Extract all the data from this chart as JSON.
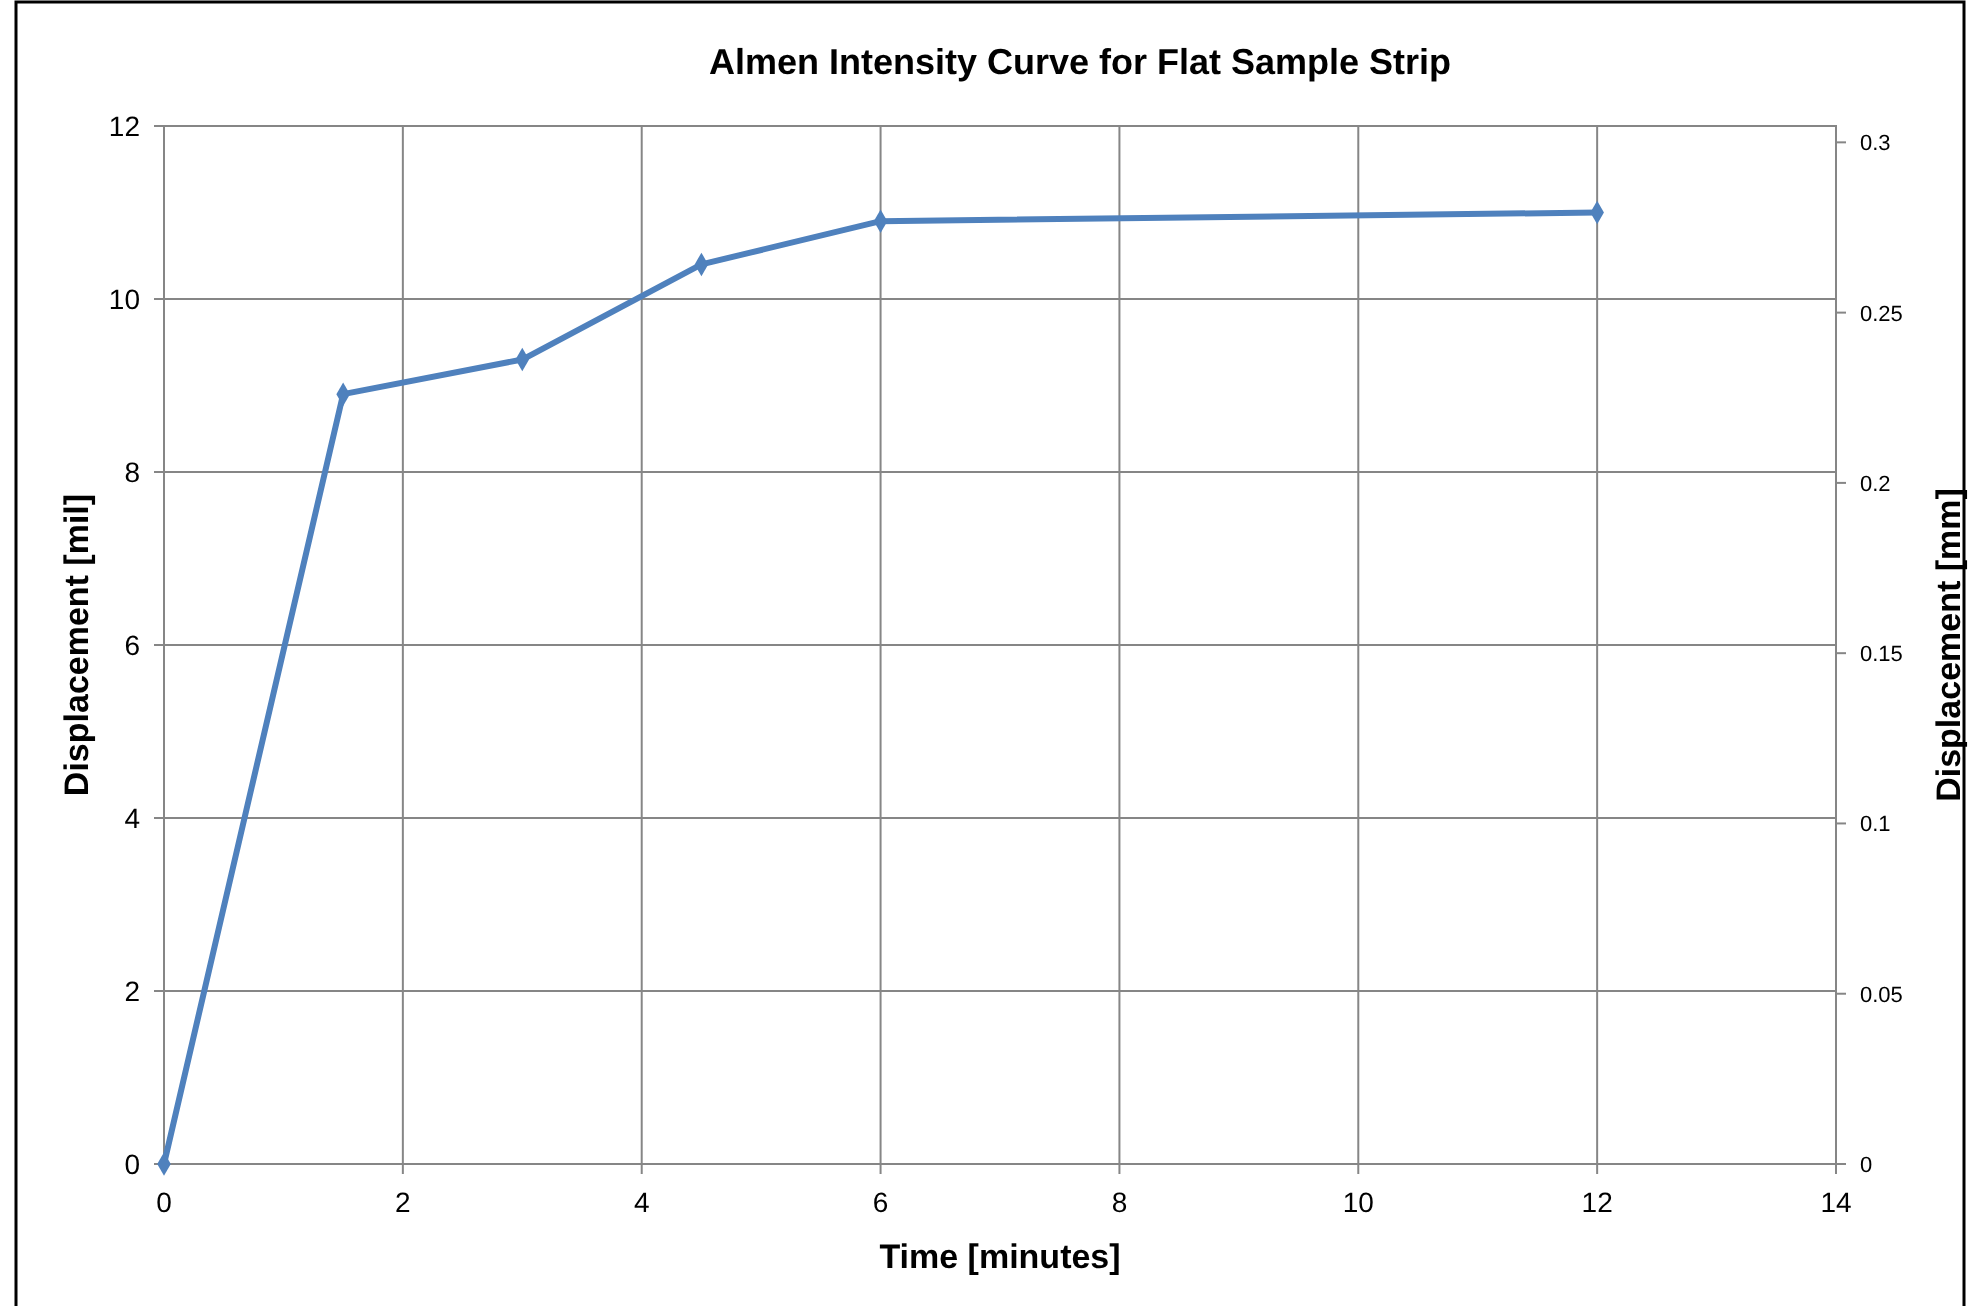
{
  "chart_data": {
    "type": "line",
    "title": "Almen Intensity Curve for Flat Sample Strip",
    "xlabel": "Time  [minutes]",
    "ylabel": "Displacement  [mil]",
    "y2label": "Displacement  [mm]",
    "x": [
      0,
      1.5,
      3,
      4.5,
      6,
      12
    ],
    "series": [
      {
        "color": "#4f81bd",
        "values": [
          0,
          8.9,
          9.3,
          10.4,
          10.9,
          11.0
        ]
      }
    ],
    "xlim": [
      0,
      14
    ],
    "xticks": [
      0,
      2,
      4,
      6,
      8,
      10,
      12,
      14
    ],
    "ylim": [
      0,
      12
    ],
    "yticks": [
      0,
      2,
      4,
      6,
      8,
      10,
      12
    ],
    "y2lim": [
      0,
      0.3048
    ],
    "y2ticks": [
      0,
      0.05,
      0.1,
      0.15,
      0.2,
      0.25,
      0.3
    ],
    "grid": true,
    "marker": "diamond",
    "line_style": "solid"
  }
}
